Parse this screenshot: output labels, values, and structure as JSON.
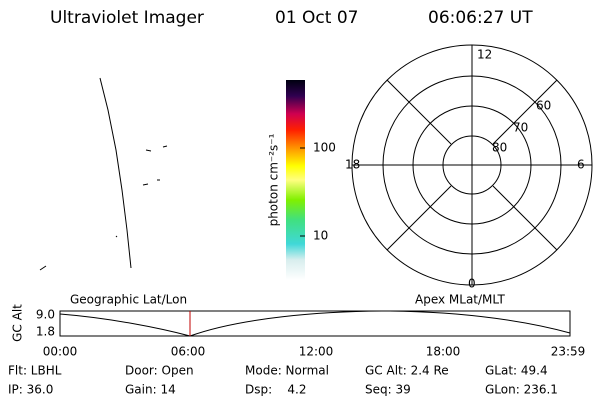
{
  "header": {
    "instrument": "Ultraviolet Imager",
    "date": "01 Oct 07",
    "time": "06:06:27 UT"
  },
  "colorbar": {
    "label": "photon cm⁻²s⁻¹",
    "ticks": [
      "100",
      "10"
    ]
  },
  "polar": {
    "mlt_labels": [
      "12",
      "18",
      "6",
      "0"
    ],
    "mlat_labels": [
      "60",
      "70",
      "80"
    ]
  },
  "timeline": {
    "left_title": "Geographic Lat/Lon",
    "right_title": "Apex MLat/MLT",
    "ylabel": "GC Alt",
    "yticks": [
      "9.0",
      "1.8"
    ],
    "xticks": [
      "00:00",
      "06:00",
      "12:00",
      "18:00",
      "23:59"
    ]
  },
  "info": {
    "row1": [
      "Flt: LBHL",
      "Door: Open",
      "Mode: Normal",
      "GC Alt: 2.4 Re",
      "GLat: 49.4"
    ],
    "row2": [
      "IP: 36.0",
      "Gain: 14",
      "Dsp:    4.2",
      "Seq: 39",
      "GLon: 236.1"
    ]
  }
}
